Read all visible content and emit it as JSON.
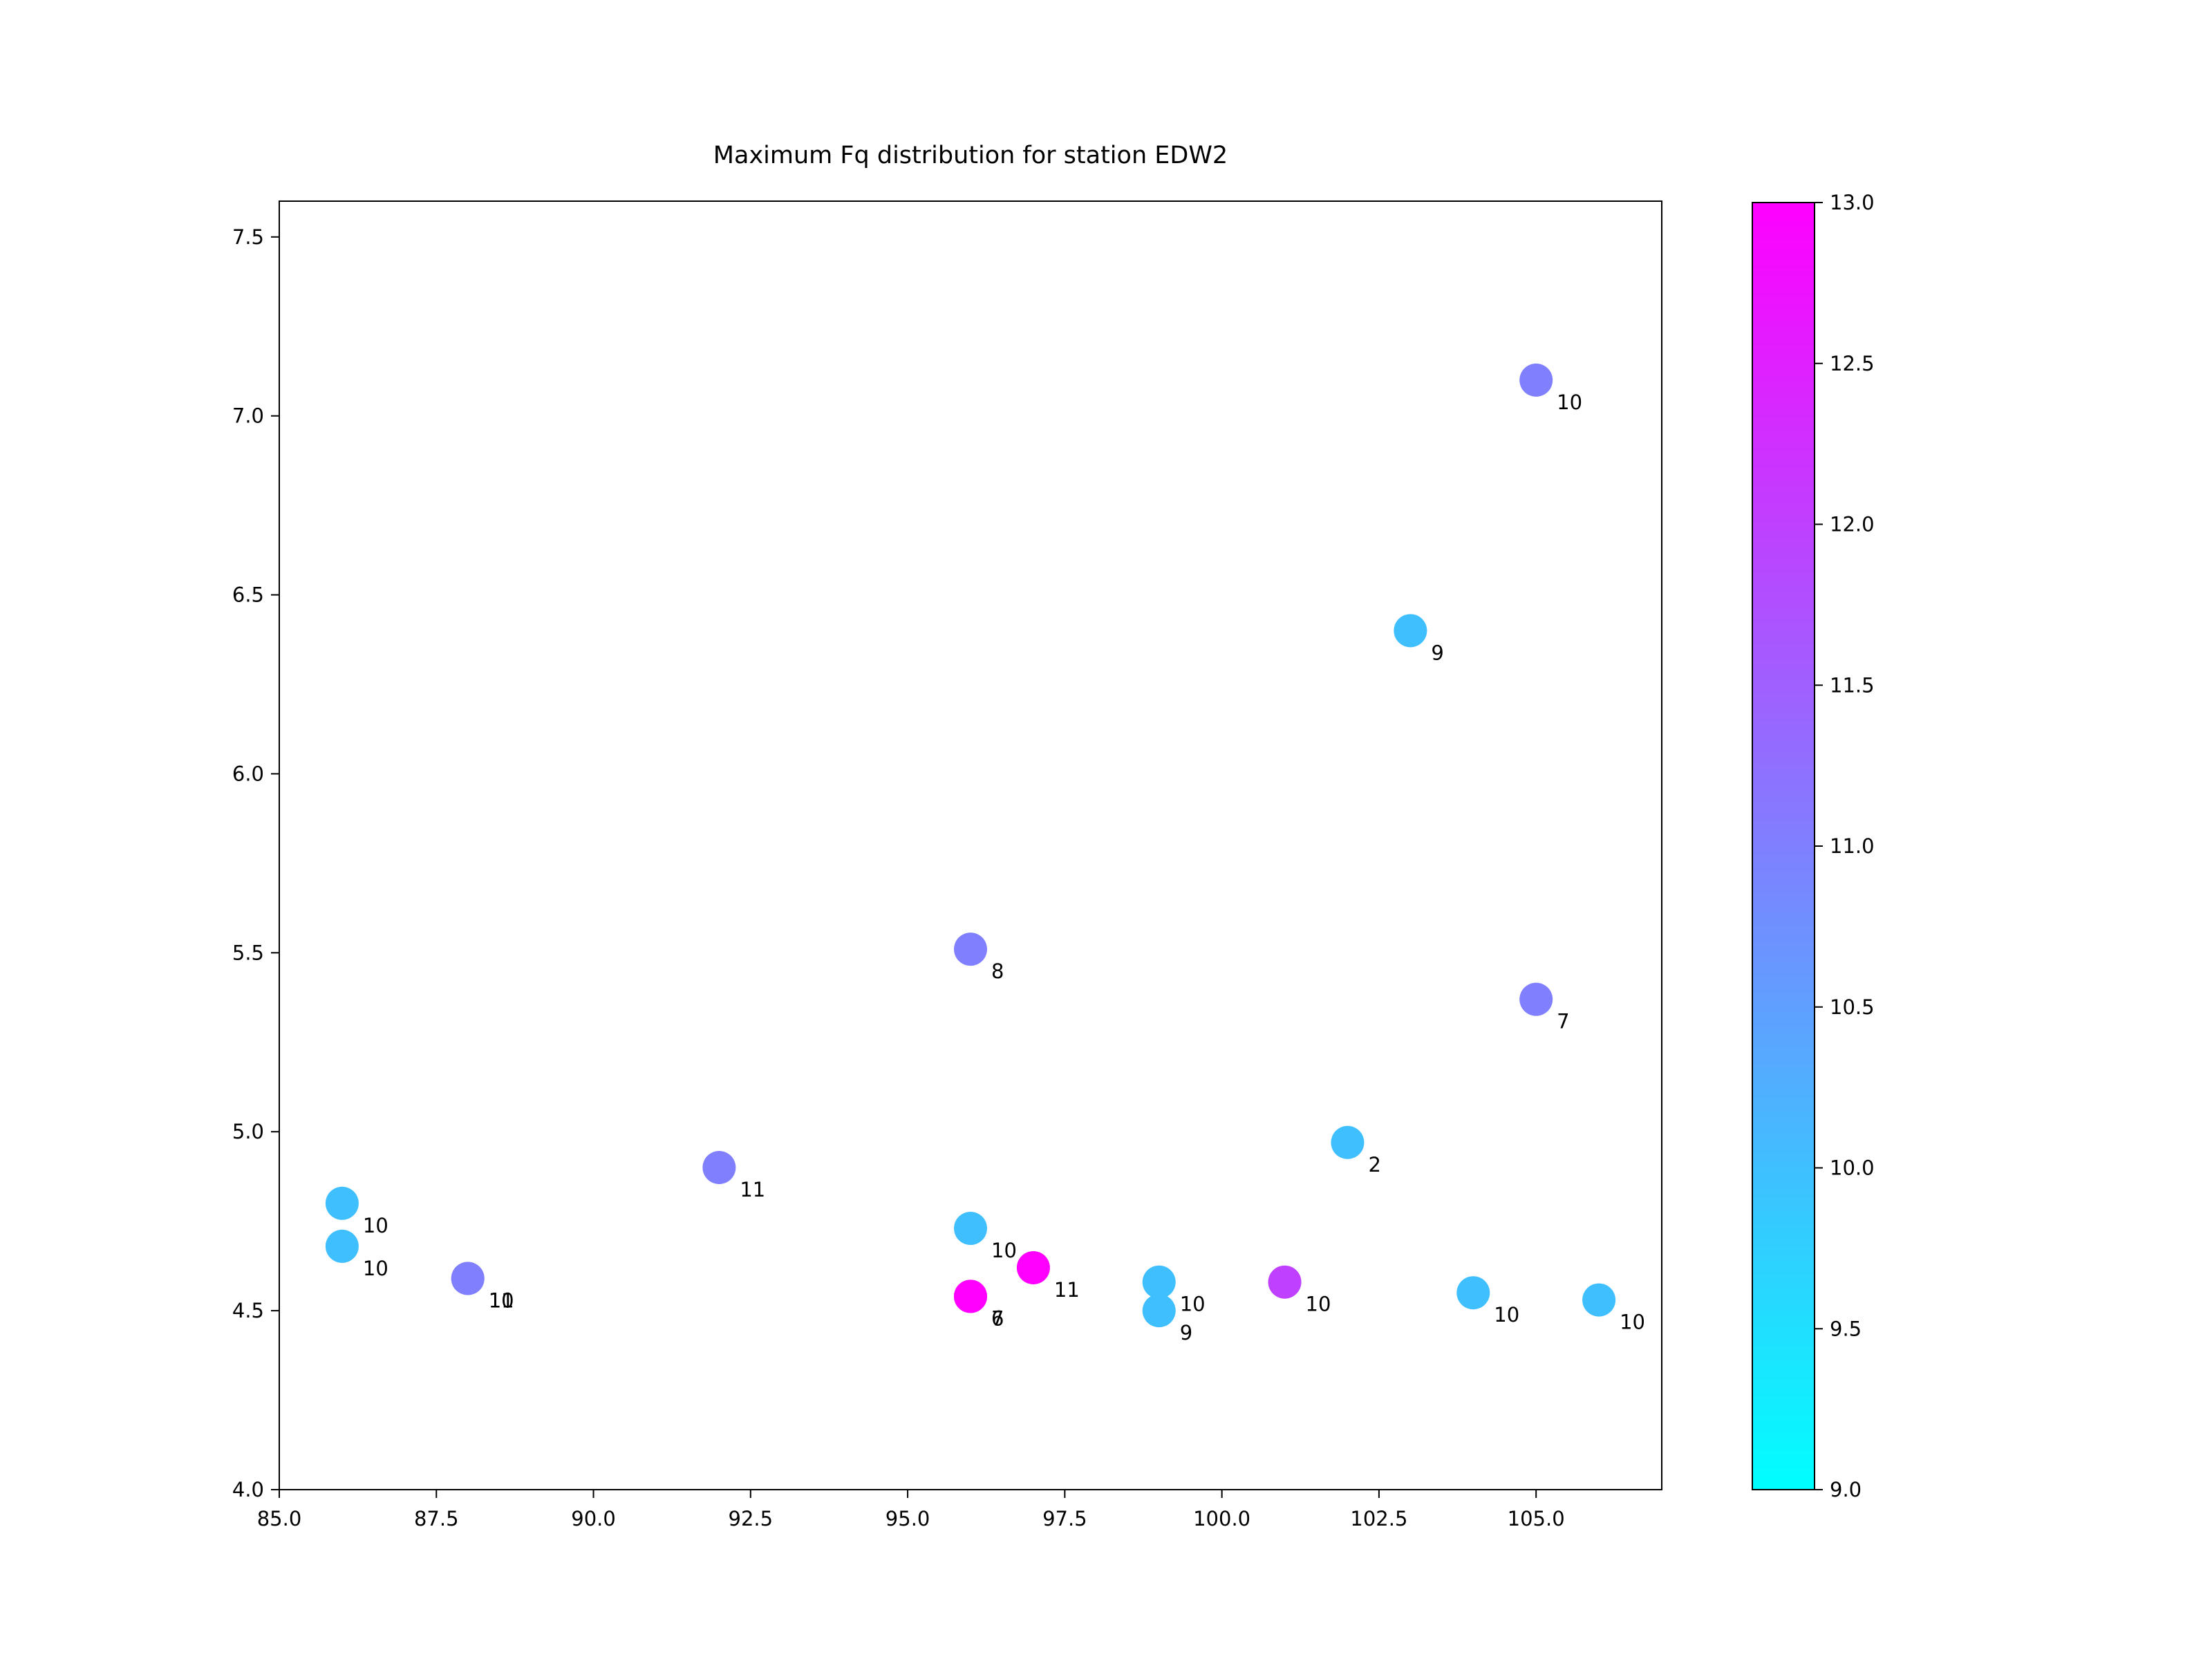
{
  "chart_data": {
    "type": "scatter",
    "title": "Maximum Fq distribution for station EDW2",
    "xlabel": "",
    "ylabel": "",
    "xlim": [
      85.0,
      107.0
    ],
    "ylim": [
      4.0,
      7.6
    ],
    "xticks": [
      "85.0",
      "87.5",
      "90.0",
      "92.5",
      "95.0",
      "97.5",
      "100.0",
      "102.5",
      "105.0"
    ],
    "yticks": [
      "4.0",
      "4.5",
      "5.0",
      "5.5",
      "6.0",
      "6.5",
      "7.0",
      "7.5"
    ],
    "grid": false,
    "colorbar": {
      "colormap": "cool",
      "range": [
        9.0,
        13.0
      ],
      "ticks": [
        "9.0",
        "9.5",
        "10.0",
        "10.5",
        "11.0",
        "11.5",
        "12.0",
        "12.5",
        "13.0"
      ],
      "low_color": "#00ffff",
      "high_color": "#ff00ff"
    },
    "points": [
      {
        "x": 86,
        "y": 4.8,
        "c": 10,
        "label": "10"
      },
      {
        "x": 86,
        "y": 4.68,
        "c": 10,
        "label": "10"
      },
      {
        "x": 88,
        "y": 4.59,
        "c": 11,
        "label": "10"
      },
      {
        "x": 88,
        "y": 4.59,
        "c": 11,
        "label": "11"
      },
      {
        "x": 92,
        "y": 4.9,
        "c": 11,
        "label": "11"
      },
      {
        "x": 96,
        "y": 5.51,
        "c": 11,
        "label": "8"
      },
      {
        "x": 96,
        "y": 4.73,
        "c": 10,
        "label": "10"
      },
      {
        "x": 96,
        "y": 4.54,
        "c": 13,
        "label": "7"
      },
      {
        "x": 96,
        "y": 4.54,
        "c": 13,
        "label": "6"
      },
      {
        "x": 97,
        "y": 4.62,
        "c": 13,
        "label": "11"
      },
      {
        "x": 99,
        "y": 4.58,
        "c": 10,
        "label": "10"
      },
      {
        "x": 99,
        "y": 4.5,
        "c": 10,
        "label": "9"
      },
      {
        "x": 101,
        "y": 4.58,
        "c": 12,
        "label": "10"
      },
      {
        "x": 102,
        "y": 4.97,
        "c": 10,
        "label": "2"
      },
      {
        "x": 103,
        "y": 6.4,
        "c": 10,
        "label": "9"
      },
      {
        "x": 104,
        "y": 4.55,
        "c": 10,
        "label": "10"
      },
      {
        "x": 105,
        "y": 7.1,
        "c": 11,
        "label": "10"
      },
      {
        "x": 105,
        "y": 5.37,
        "c": 11,
        "label": "7"
      },
      {
        "x": 106,
        "y": 4.53,
        "c": 10,
        "label": "10"
      }
    ]
  }
}
